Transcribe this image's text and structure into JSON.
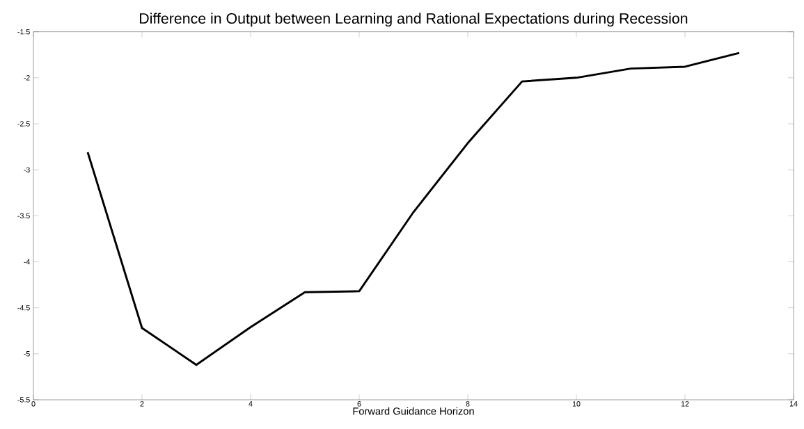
{
  "chart_data": {
    "type": "line",
    "title": "Difference in Output between Learning and Rational Expectations during Recession",
    "xlabel": "Forward Guidance Horizon",
    "x": [
      1,
      2,
      3,
      4,
      5,
      6,
      7,
      8,
      9,
      10,
      11,
      12,
      13
    ],
    "series": [
      {
        "color": "#000000",
        "values": [
          -2.81,
          -4.72,
          -5.12,
          -4.71,
          -4.33,
          -4.32,
          -3.46,
          -2.71,
          -2.04,
          -2.0,
          -1.9,
          -1.88,
          -1.73
        ]
      }
    ],
    "xlim": [
      0,
      14
    ],
    "xticks": [
      0,
      2,
      4,
      6,
      8,
      10,
      12,
      14
    ],
    "ylim": [
      -5.5,
      -1.5
    ],
    "yticks": [
      -5.5,
      -5,
      -4.5,
      -4,
      -3.5,
      -3,
      -2.5,
      -2,
      -1.5
    ],
    "grid": false
  }
}
